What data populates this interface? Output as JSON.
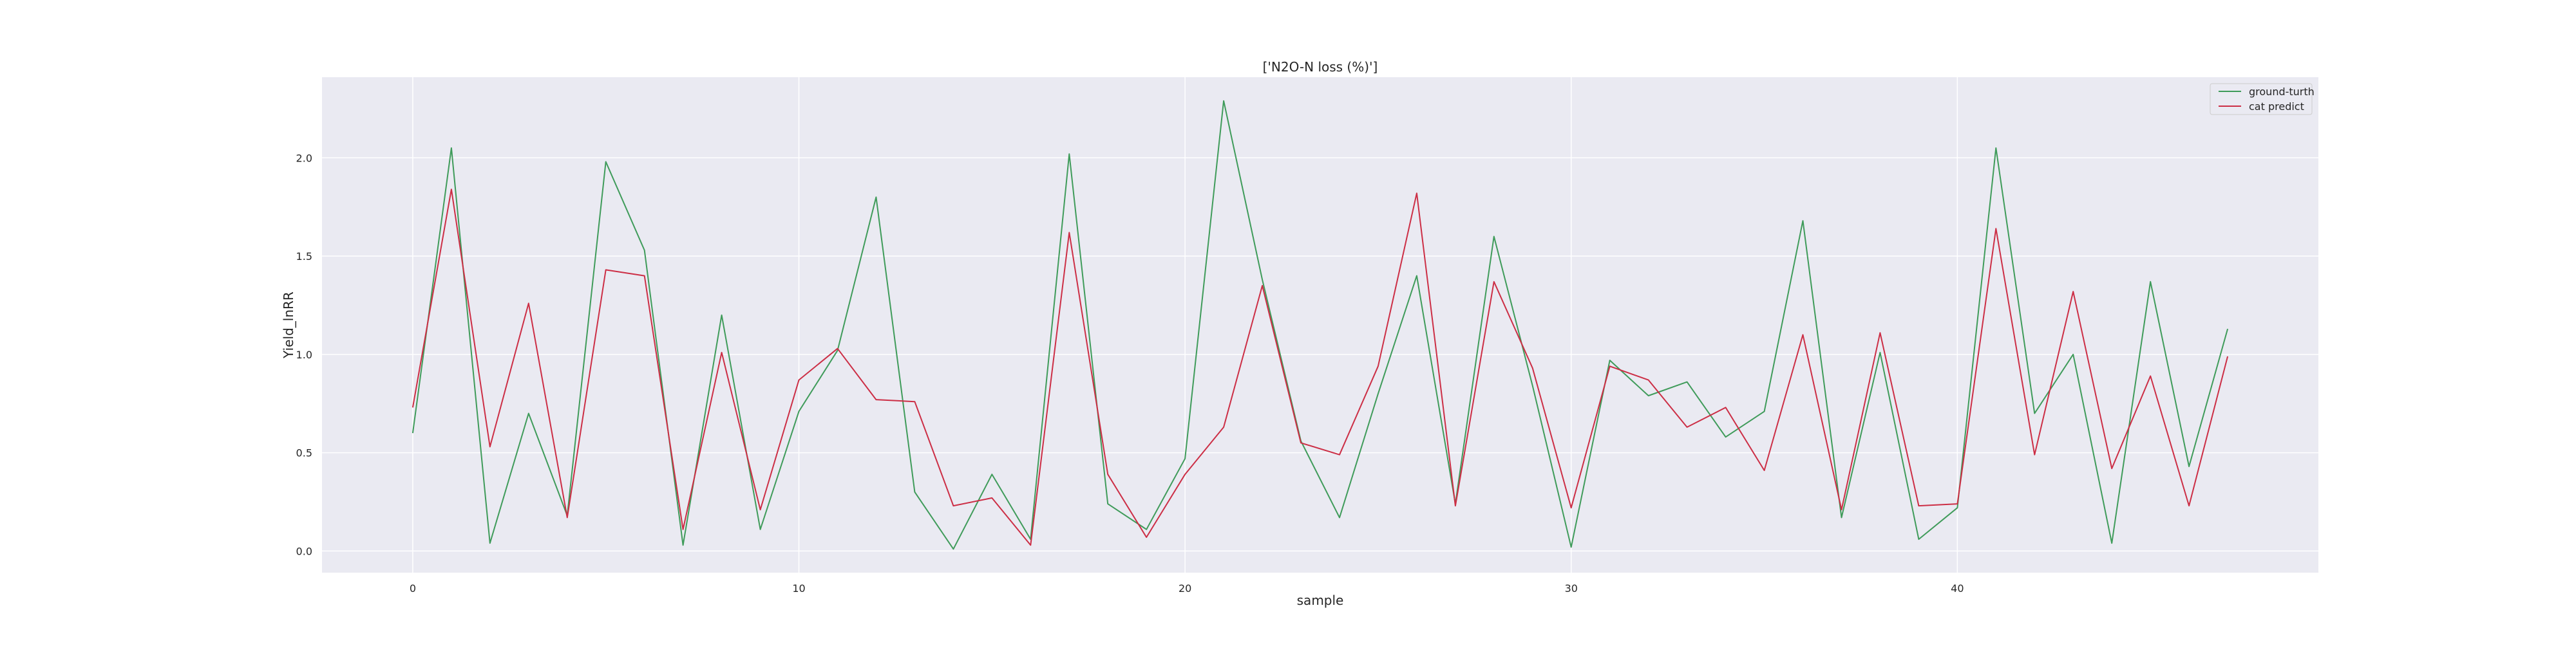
{
  "chart_data": {
    "type": "line",
    "title": "['N2O-N loss (%)']",
    "xlabel": "sample",
    "ylabel": "Yield_lnRR",
    "xlim": [
      -2.35,
      49.35
    ],
    "ylim": [
      -0.11,
      2.41
    ],
    "x_ticks": [
      0,
      10,
      20,
      30,
      40
    ],
    "y_ticks": [
      0.0,
      0.5,
      1.0,
      1.5,
      2.0
    ],
    "y_tick_labels": [
      "0.0",
      "0.5",
      "1.0",
      "1.5",
      "2.0"
    ],
    "grid": true,
    "legend_position": "top-right",
    "x": [
      0,
      1,
      2,
      3,
      4,
      5,
      6,
      7,
      8,
      9,
      10,
      11,
      12,
      13,
      14,
      15,
      16,
      17,
      18,
      19,
      20,
      21,
      22,
      23,
      24,
      25,
      26,
      27,
      28,
      29,
      30,
      31,
      32,
      33,
      34,
      35,
      36,
      37,
      38,
      39,
      40,
      41,
      42,
      43,
      44,
      45,
      46,
      47
    ],
    "series": [
      {
        "name": "ground-turth",
        "color": "#3f9b5a",
        "values": [
          0.6,
          2.05,
          0.04,
          0.7,
          0.18,
          1.98,
          1.53,
          0.03,
          1.2,
          0.11,
          0.71,
          1.02,
          1.8,
          0.3,
          0.01,
          0.39,
          0.06,
          2.02,
          0.24,
          0.11,
          0.47,
          2.29,
          1.38,
          0.56,
          0.17,
          0.8,
          1.4,
          0.24,
          1.6,
          0.84,
          0.02,
          0.97,
          0.79,
          0.86,
          0.58,
          0.71,
          1.68,
          0.17,
          1.01,
          0.06,
          0.22,
          2.05,
          0.7,
          1.0,
          0.04,
          1.37,
          0.43,
          1.13
        ]
      },
      {
        "name": "cat predict",
        "color": "#cc2e45",
        "values": [
          0.73,
          1.84,
          0.53,
          1.26,
          0.17,
          1.43,
          1.4,
          0.11,
          1.01,
          0.21,
          0.87,
          1.03,
          0.77,
          0.76,
          0.23,
          0.27,
          0.03,
          1.62,
          0.39,
          0.07,
          0.39,
          0.63,
          1.35,
          0.55,
          0.49,
          0.94,
          1.82,
          0.23,
          1.37,
          0.93,
          0.22,
          0.94,
          0.87,
          0.63,
          0.73,
          0.41,
          1.1,
          0.21,
          1.11,
          0.23,
          0.24,
          1.64,
          0.49,
          1.32,
          0.42,
          0.89,
          0.23,
          0.99
        ]
      }
    ]
  }
}
